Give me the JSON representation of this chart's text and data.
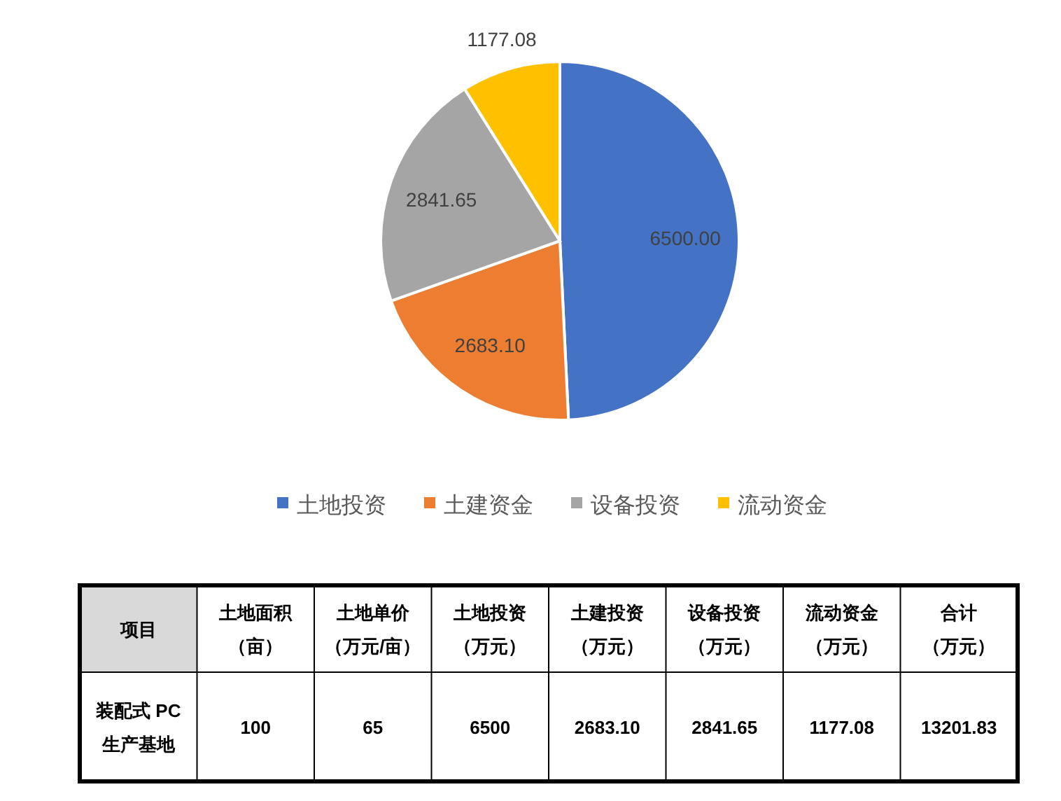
{
  "chart_data": {
    "type": "pie",
    "categories": [
      "土地投资",
      "土建资金",
      "设备投资",
      "流动资金"
    ],
    "values": [
      6500,
      2683.1,
      2841.65,
      1177.08
    ],
    "colors": [
      "#4472c4",
      "#ed7d31",
      "#a5a5a5",
      "#ffc000"
    ],
    "value_labels": [
      "6500.00",
      "2683.10",
      "2841.65",
      "1177.08"
    ],
    "legend": "bottom",
    "annotations": [
      "项目",
      "土地面积（亩）",
      "土地单价（万元/亩）",
      "土地投资（万元）",
      "土建投资（万元）",
      "设备投资（万元）",
      "流动资金（万元）",
      "合计（万元）",
      "装配式 PC生产基地",
      "100",
      "65",
      "6500",
      "2683.10",
      "2841.65",
      "1177.08",
      "13201.83"
    ]
  }
}
